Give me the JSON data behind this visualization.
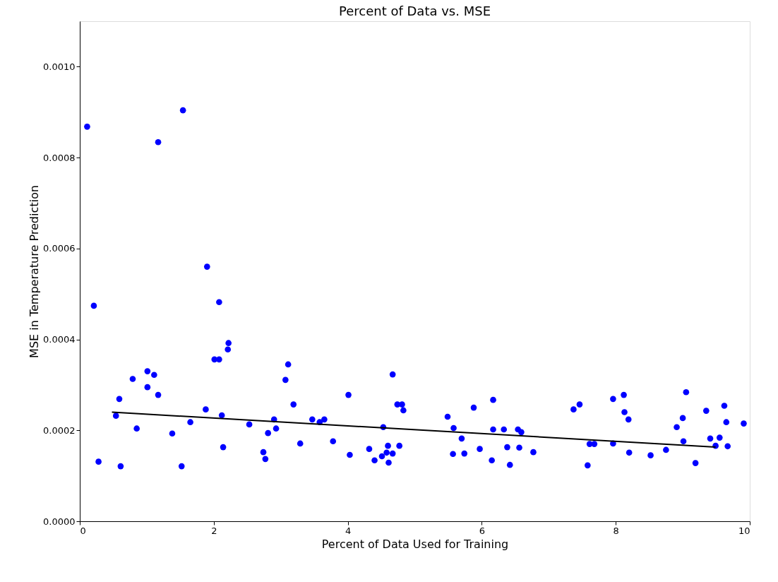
{
  "chart_data": {
    "type": "scatter",
    "title": "Percent of Data vs. MSE",
    "xlabel": "Percent of Data Used for Training",
    "ylabel": "MSE in Temperature Prediction",
    "xlim": [
      0,
      10
    ],
    "ylim": [
      0,
      0.0011
    ],
    "xticks": [
      0,
      2,
      4,
      6,
      8,
      10
    ],
    "yticks": [
      {
        "value": 0,
        "label": "0.0000"
      },
      {
        "value": 0.0002,
        "label": "0.0002"
      },
      {
        "value": 0.0004,
        "label": "0.0004"
      },
      {
        "value": 0.0006,
        "label": "0.0006"
      },
      {
        "value": 0.0008,
        "label": "0.0008"
      },
      {
        "value": 0.001,
        "label": "0.0010"
      }
    ],
    "grid": false,
    "legend": false,
    "series": [
      {
        "color": "#0000ff",
        "marker": "circle",
        "x": [
          0.11,
          0.21,
          0.28,
          0.54,
          0.59,
          0.61,
          0.79,
          0.85,
          1.01,
          1.01,
          1.11,
          1.17,
          1.17,
          1.38,
          1.52,
          1.54,
          1.65,
          1.88,
          1.9,
          2.01,
          2.08,
          2.08,
          2.12,
          2.14,
          2.22,
          2.21,
          2.53,
          2.74,
          2.77,
          2.81,
          2.9,
          2.93,
          3.07,
          3.11,
          3.19,
          3.29,
          3.47,
          3.58,
          3.65,
          3.78,
          4.01,
          4.03,
          4.32,
          4.4,
          4.51,
          4.53,
          4.58,
          4.6,
          4.61,
          4.67,
          4.67,
          4.74,
          4.77,
          4.81,
          4.83,
          5.49,
          5.58,
          5.57,
          5.7,
          5.74,
          5.88,
          5.97,
          6.15,
          6.17,
          6.17,
          6.33,
          6.38,
          6.42,
          6.54,
          6.59,
          6.56,
          6.77,
          7.37,
          7.46,
          7.58,
          7.61,
          7.68,
          7.96,
          7.96,
          8.12,
          8.13,
          8.19,
          8.2,
          8.52,
          8.75,
          9.19,
          8.91,
          9.0,
          9.01,
          9.05,
          9.35,
          9.41,
          9.49,
          9.55,
          9.62,
          9.65,
          9.67,
          9.91
        ],
        "values": [
          0.000868,
          0.000474,
          0.000131,
          0.000232,
          0.000269,
          0.000121,
          0.000313,
          0.000204,
          0.00033,
          0.000295,
          0.000322,
          0.000278,
          0.000834,
          0.000193,
          0.000121,
          0.000904,
          0.000218,
          0.000246,
          0.00056,
          0.000356,
          0.000356,
          0.000482,
          0.000233,
          0.000163,
          0.000392,
          0.000378,
          0.000213,
          0.000152,
          0.000137,
          0.000194,
          0.000224,
          0.000204,
          0.000311,
          0.000345,
          0.000257,
          0.000171,
          0.000224,
          0.000218,
          0.000224,
          0.000176,
          0.000278,
          0.000146,
          0.000159,
          0.000134,
          0.000143,
          0.000207,
          0.000151,
          0.000166,
          0.000129,
          0.000323,
          0.000149,
          0.000257,
          0.000166,
          0.000257,
          0.000244,
          0.00023,
          0.000205,
          0.000148,
          0.000182,
          0.000149,
          0.00025,
          0.000159,
          0.000134,
          0.000267,
          0.000202,
          0.000202,
          0.000163,
          0.000124,
          0.000202,
          0.000196,
          0.000162,
          0.000152,
          0.000246,
          0.000257,
          0.000123,
          0.00017,
          0.00017,
          0.000269,
          0.000171,
          0.000278,
          0.00024,
          0.000224,
          0.000151,
          0.000145,
          0.000157,
          0.000128,
          0.000207,
          0.000227,
          0.000176,
          0.000284,
          0.000243,
          0.000182,
          0.000166,
          0.000184,
          0.000254,
          0.000218,
          0.000165,
          0.000215
        ]
      },
      {
        "type": "line",
        "color": "#000000",
        "line_style": "solid",
        "marker": "none",
        "x": [
          0.48,
          9.49
        ],
        "values": [
          0.00024,
          0.000163
        ]
      }
    ]
  }
}
